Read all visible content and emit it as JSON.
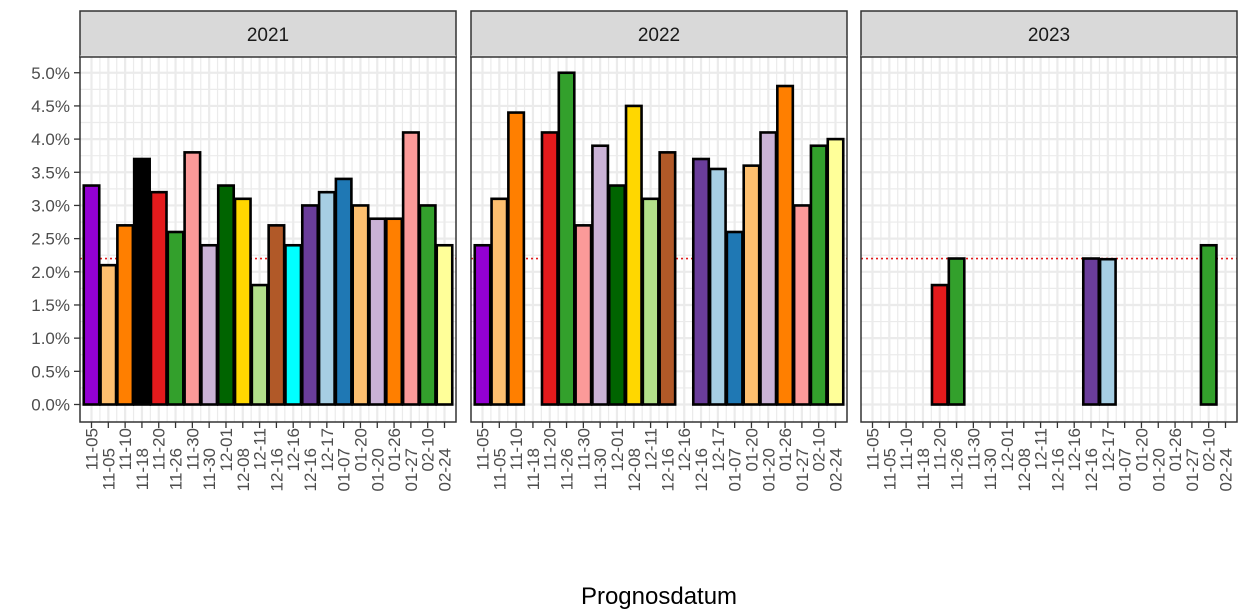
{
  "chart_data": {
    "type": "bar",
    "facets": [
      "2021",
      "2022",
      "2023"
    ],
    "xlabel": "Prognosdatum",
    "ylabel": "",
    "ylim": [
      0,
      5.3
    ],
    "ytick_labels": [
      "0.0%",
      "0.5%",
      "1.0%",
      "1.5%",
      "2.0%",
      "2.5%",
      "3.0%",
      "3.5%",
      "4.0%",
      "4.5%",
      "5.0%"
    ],
    "ytick_values": [
      0,
      0.5,
      1.0,
      1.5,
      2.0,
      2.5,
      3.0,
      3.5,
      4.0,
      4.5,
      5.0
    ],
    "reference_line": 2.2,
    "reference_line_color": "#e41a1c",
    "categories": [
      "11-05",
      "11-05",
      "11-10",
      "11-18",
      "11-20",
      "11-26",
      "11-30",
      "11-30",
      "12-01",
      "12-08",
      "12-11",
      "12-16",
      "12-16",
      "12-16",
      "12-17",
      "01-07",
      "01-20",
      "01-20",
      "01-26",
      "01-27",
      "02-10",
      "02-24"
    ],
    "grid": true,
    "legend": "none",
    "series": [
      {
        "facet": "2021",
        "values": [
          3.3,
          2.1,
          2.7,
          3.7,
          3.2,
          2.6,
          3.8,
          2.4,
          3.3,
          3.1,
          1.8,
          2.7,
          2.4,
          3.0,
          3.2,
          3.4,
          3.0,
          2.8,
          2.8,
          4.1,
          3.0,
          2.4
        ]
      },
      {
        "facet": "2022",
        "values": [
          2.4,
          3.1,
          4.4,
          null,
          4.1,
          5.0,
          2.7,
          3.9,
          3.3,
          4.5,
          3.1,
          3.8,
          null,
          3.7,
          3.55,
          2.6,
          3.6,
          4.1,
          4.8,
          3.0,
          3.9,
          4.0
        ]
      },
      {
        "facet": "2023",
        "values": [
          null,
          null,
          null,
          null,
          1.8,
          2.2,
          null,
          null,
          null,
          null,
          null,
          null,
          null,
          2.2,
          2.19,
          null,
          null,
          null,
          null,
          null,
          2.4,
          null
        ]
      }
    ],
    "bar_colors": [
      "#9400d3",
      "#fdbf6f",
      "#ff7f00",
      "#000000",
      "#e31a1c",
      "#33a02c",
      "#fb9a99",
      "#cab2d6",
      "#006400",
      "#ffd700",
      "#b2df8a",
      "#b15928",
      "#00ffff",
      "#6a3d9a",
      "#a6cee3",
      "#1f78b4",
      "#fdbf6f",
      "#cab2d6",
      "#ff7f00",
      "#fb9a99",
      "#33a02c",
      "#ffff99"
    ]
  }
}
